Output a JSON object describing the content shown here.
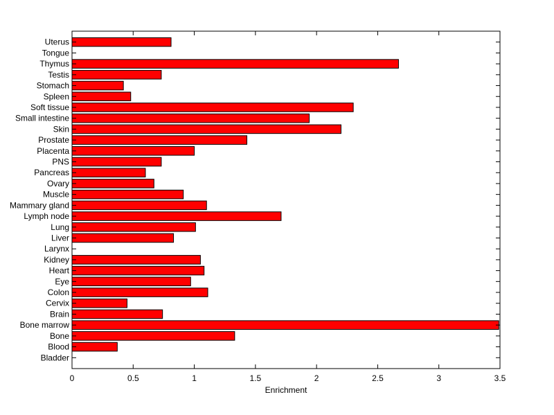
{
  "chart_data": {
    "type": "bar",
    "orientation": "horizontal",
    "title": "",
    "xlabel": "Enrichment",
    "ylabel": "",
    "xlim": [
      0,
      3.5
    ],
    "xticks": [
      0,
      0.5,
      1,
      1.5,
      2,
      2.5,
      3,
      3.5
    ],
    "xtick_labels": [
      "0",
      "0.5",
      "1",
      "1.5",
      "2",
      "2.5",
      "3",
      "3.5"
    ],
    "grid": false,
    "bar_color": "#ff0000",
    "edge_color": "#000000",
    "categories": [
      "Bladder",
      "Blood",
      "Bone",
      "Bone marrow",
      "Brain",
      "Cervix",
      "Colon",
      "Eye",
      "Heart",
      "Kidney",
      "Larynx",
      "Liver",
      "Lung",
      "Lymph node",
      "Mammary gland",
      "Muscle",
      "Ovary",
      "Pancreas",
      "PNS",
      "Placenta",
      "Prostate",
      "Skin",
      "Small intestine",
      "Soft tissue",
      "Spleen",
      "Stomach",
      "Testis",
      "Thymus",
      "Tongue",
      "Uterus"
    ],
    "values": [
      0,
      0.37,
      1.33,
      3.49,
      0.74,
      0.45,
      1.11,
      0.97,
      1.08,
      1.05,
      0,
      0.83,
      1.01,
      1.71,
      1.1,
      0.91,
      0.67,
      0.6,
      0.73,
      1.0,
      1.43,
      2.2,
      1.94,
      2.3,
      0.48,
      0.42,
      0.73,
      2.67,
      0,
      0.81
    ]
  }
}
